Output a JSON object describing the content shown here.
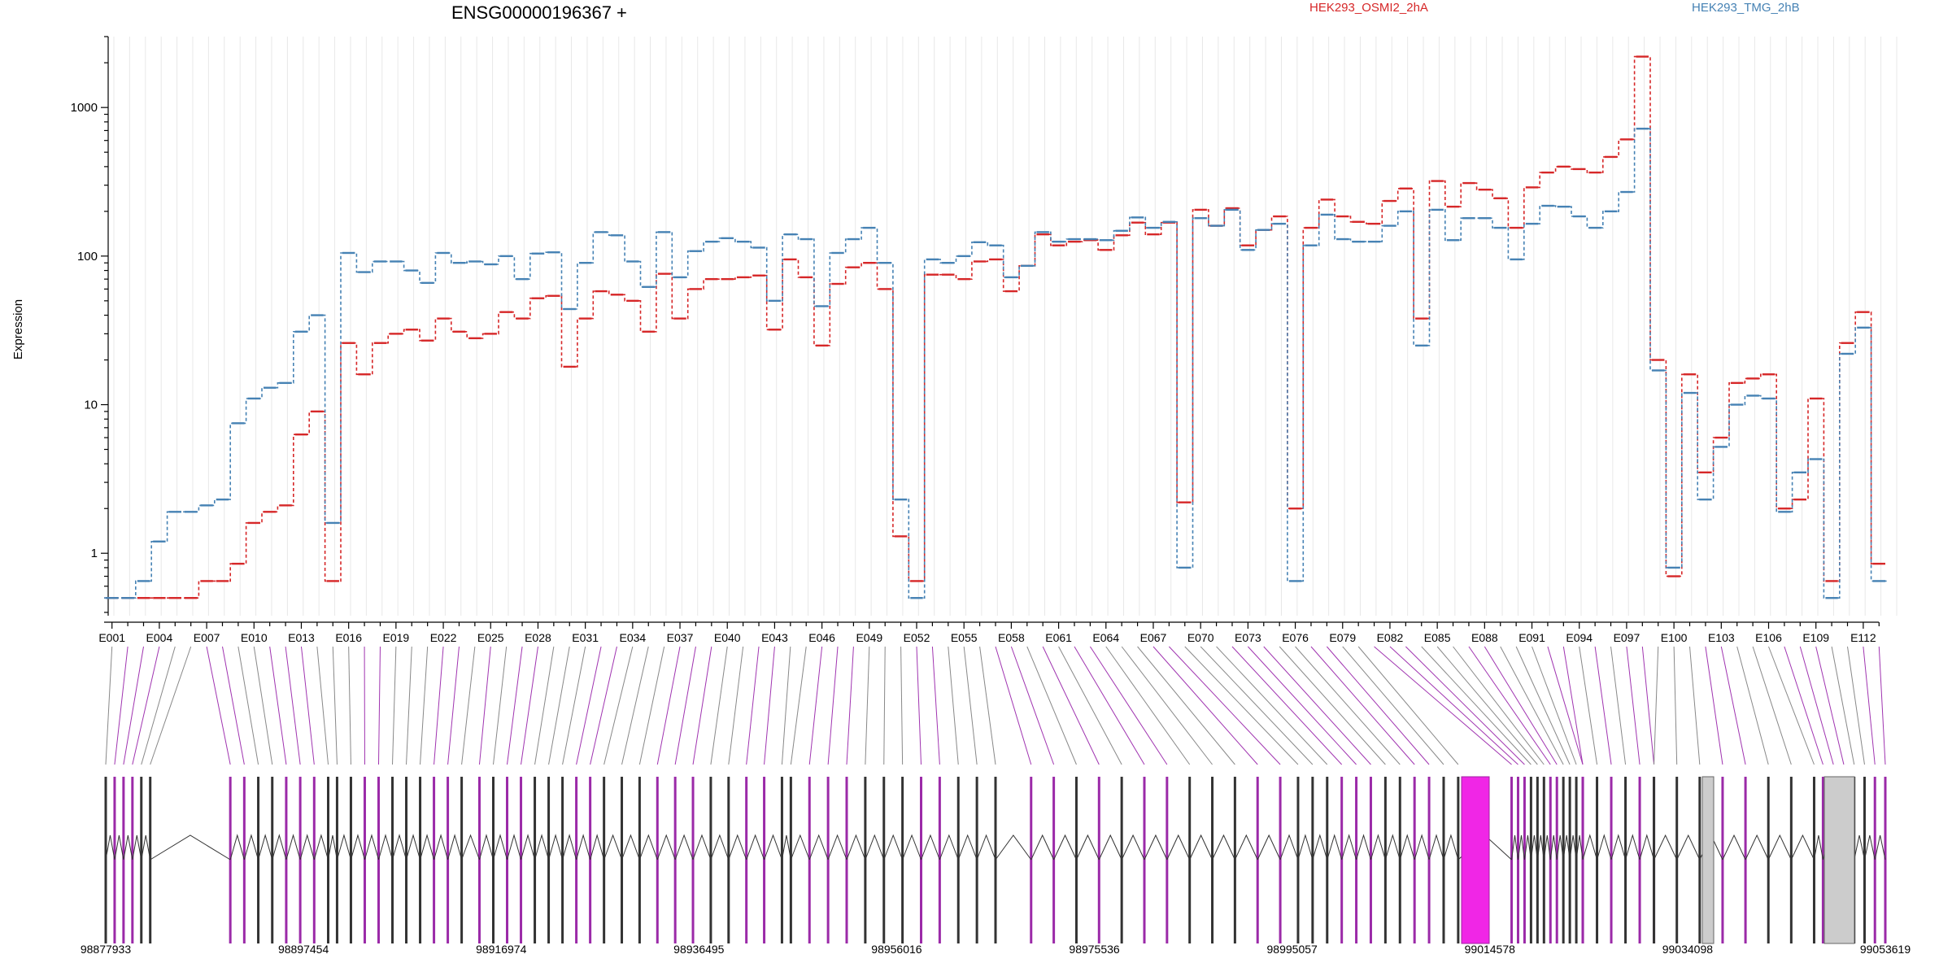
{
  "chart_data": {
    "type": "line",
    "title": "ENSG00000196367 +",
    "ylabel": "Expression",
    "yscale": "log",
    "ylim": [
      0.38,
      3000
    ],
    "yticks": [
      1,
      10,
      100,
      1000
    ],
    "grid": true,
    "legend_placement": "top",
    "x": [
      "E001",
      "E002",
      "E003",
      "E004",
      "E005",
      "E006",
      "E007",
      "E008",
      "E009",
      "E010",
      "E011",
      "E012",
      "E013",
      "E014",
      "E015",
      "E016",
      "E017",
      "E018",
      "E019",
      "E020",
      "E021",
      "E022",
      "E023",
      "E024",
      "E025",
      "E026",
      "E027",
      "E028",
      "E029",
      "E030",
      "E031",
      "E032",
      "E033",
      "E034",
      "E035",
      "E036",
      "E037",
      "E038",
      "E039",
      "E040",
      "E041",
      "E042",
      "E043",
      "E044",
      "E045",
      "E046",
      "E047",
      "E048",
      "E049",
      "E050",
      "E051",
      "E052",
      "E053",
      "E054",
      "E055",
      "E056",
      "E057",
      "E058",
      "E059",
      "E060",
      "E061",
      "E062",
      "E063",
      "E064",
      "E065",
      "E066",
      "E067",
      "E068",
      "E069",
      "E070",
      "E071",
      "E072",
      "E073",
      "E074",
      "E075",
      "E076",
      "E077",
      "E078",
      "E079",
      "E080",
      "E081",
      "E082",
      "E083",
      "E084",
      "E085",
      "E086",
      "E087",
      "E088",
      "E089",
      "E090",
      "E091",
      "E092",
      "E093",
      "E094",
      "E095",
      "E096",
      "E097",
      "E098",
      "E099",
      "E100",
      "E101",
      "E102",
      "E103",
      "E104",
      "E105",
      "E106",
      "E107",
      "E108",
      "E109",
      "E110",
      "E111",
      "E112",
      "E113"
    ],
    "xticks_shown": [
      "E001",
      "E004",
      "E007",
      "E010",
      "E013",
      "E016",
      "E019",
      "E022",
      "E025",
      "E028",
      "E031",
      "E034",
      "E037",
      "E040",
      "E043",
      "E046",
      "E049",
      "E052",
      "E055",
      "E058",
      "E061",
      "E064",
      "E067",
      "E070",
      "E073",
      "E076",
      "E079",
      "E082",
      "E085",
      "E088",
      "E091",
      "E094",
      "E097",
      "E100",
      "E103",
      "E106",
      "E109",
      "E112"
    ],
    "series": [
      {
        "name": "HEK293_OSMI2_2hA",
        "color": "#d62728",
        "values": [
          0.5,
          0.5,
          0.5,
          0.5,
          0.5,
          0.5,
          0.65,
          0.65,
          0.85,
          1.6,
          1.9,
          2.1,
          6.3,
          9,
          0.65,
          26,
          16,
          26,
          30,
          32,
          27,
          38,
          31,
          28,
          30,
          42,
          38,
          52,
          54,
          18,
          38,
          58,
          55,
          50,
          31,
          76,
          38,
          60,
          70,
          70,
          72,
          74,
          32,
          95,
          72,
          25,
          65,
          84,
          90,
          60,
          1.3,
          0.65,
          75,
          75,
          70,
          92,
          95,
          58,
          86,
          140,
          118,
          125,
          128,
          110,
          138,
          168,
          140,
          168,
          2.2,
          205,
          160,
          210,
          118,
          150,
          185,
          2,
          155,
          240,
          185,
          170,
          165,
          235,
          285,
          38,
          320,
          215,
          310,
          280,
          245,
          155,
          290,
          365,
          400,
          385,
          365,
          465,
          610,
          2200,
          20,
          0.7,
          16,
          3.5,
          6,
          14,
          15,
          16,
          2,
          2.3,
          11,
          0.65,
          26,
          42,
          0.85
        ]
      },
      {
        "name": "HEK293_TMG_2hB",
        "color": "#4682b4",
        "values": [
          0.5,
          0.5,
          0.65,
          1.2,
          1.9,
          1.9,
          2.1,
          2.3,
          7.5,
          11,
          13,
          14,
          31,
          40,
          1.6,
          105,
          78,
          92,
          92,
          80,
          66,
          105,
          90,
          92,
          88,
          100,
          70,
          104,
          106,
          44,
          90,
          145,
          138,
          92,
          62,
          145,
          72,
          108,
          125,
          132,
          125,
          114,
          50,
          140,
          130,
          46,
          105,
          130,
          155,
          90,
          2.3,
          0.5,
          95,
          90,
          100,
          124,
          118,
          72,
          86,
          145,
          125,
          130,
          130,
          128,
          148,
          182,
          155,
          170,
          0.8,
          180,
          160,
          205,
          110,
          150,
          165,
          0.65,
          118,
          190,
          130,
          125,
          125,
          160,
          200,
          25,
          205,
          128,
          180,
          180,
          155,
          95,
          165,
          218,
          215,
          185,
          155,
          200,
          270,
          720,
          17,
          0.8,
          12,
          2.3,
          5.2,
          10,
          11.5,
          11,
          1.9,
          3.5,
          4.3,
          0.5,
          22,
          33,
          0.65
        ]
      }
    ],
    "gene_track": {
      "coordinate_labels": [
        "98877933",
        "98897454",
        "98916974",
        "98936495",
        "98956016",
        "98975536",
        "98995057",
        "99014578",
        "99034098",
        "99053619"
      ],
      "range": [
        98877933,
        99053619
      ]
    }
  }
}
